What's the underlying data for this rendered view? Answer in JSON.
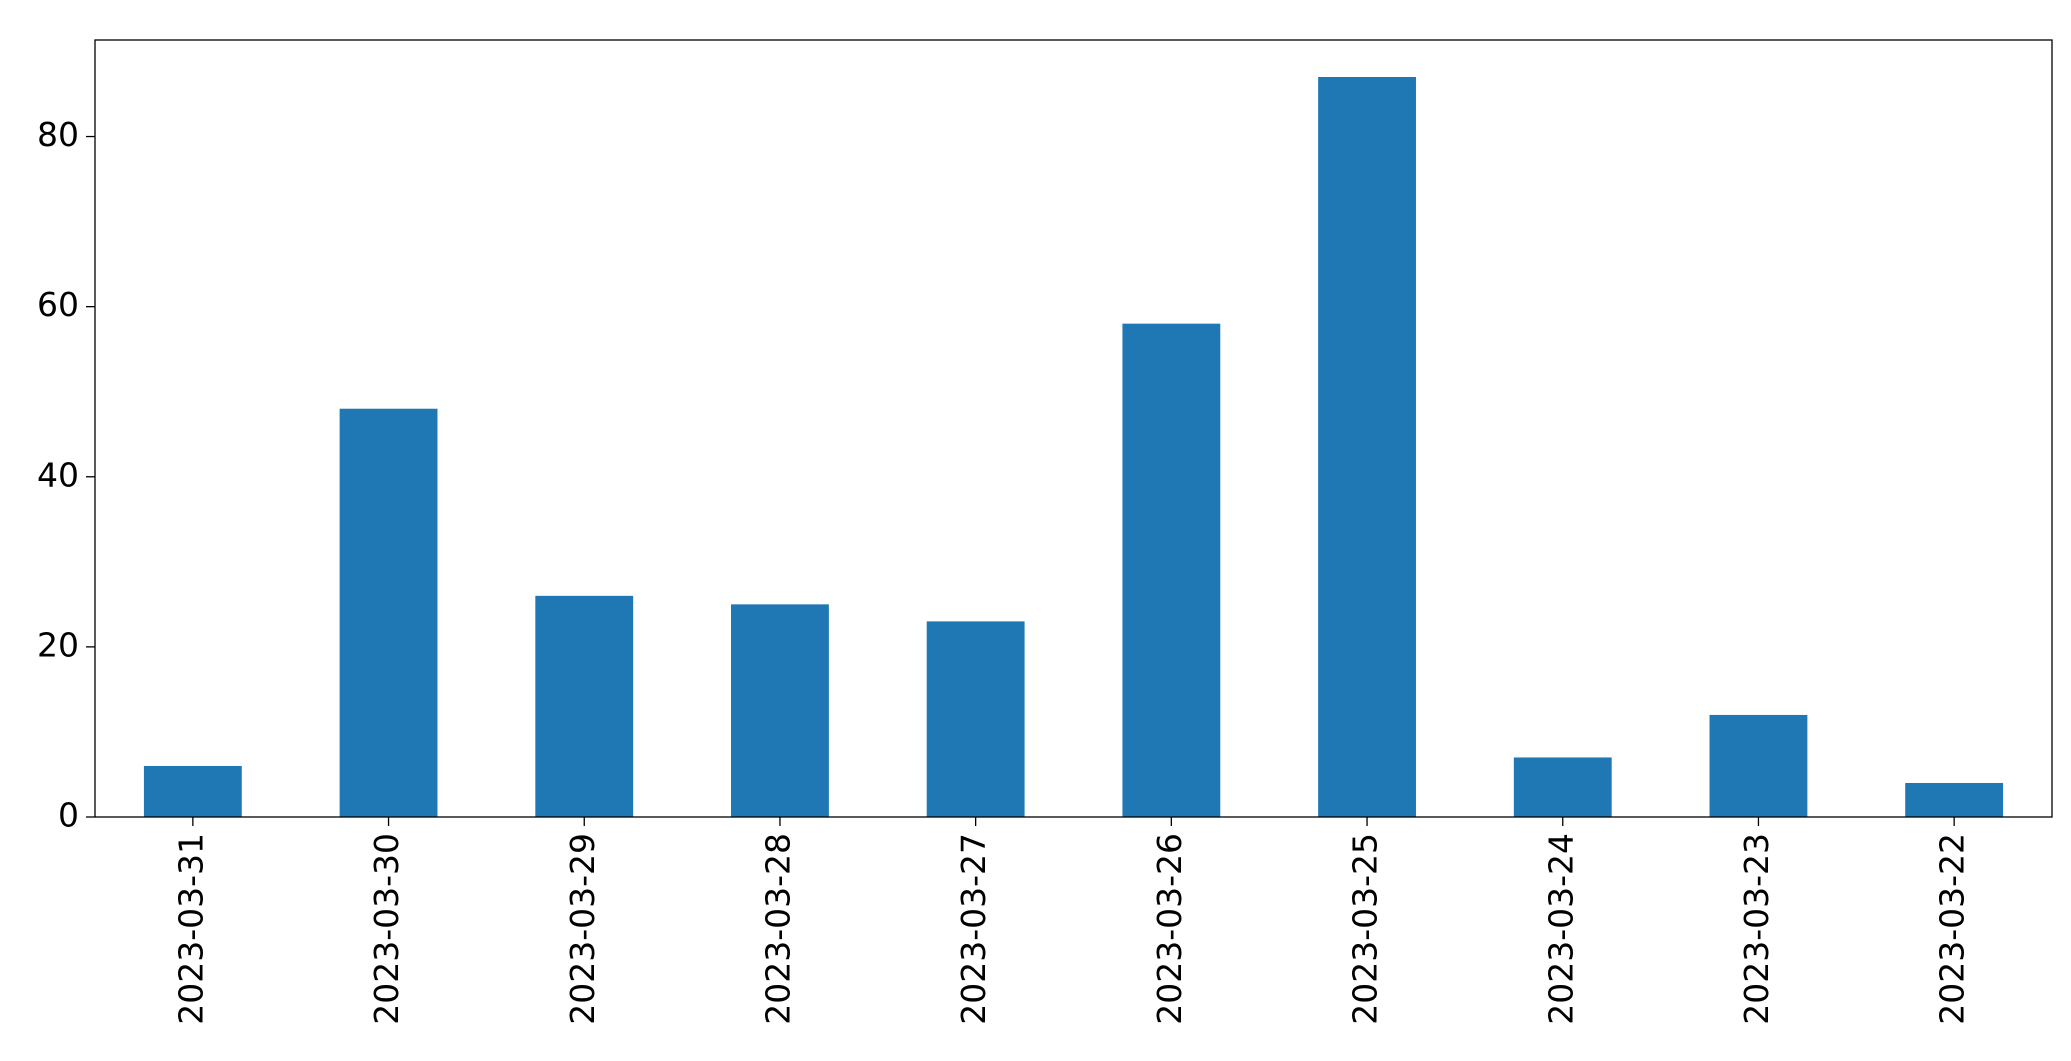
{
  "chart_data": {
    "type": "bar",
    "categories": [
      "2023-03-31",
      "2023-03-30",
      "2023-03-29",
      "2023-03-28",
      "2023-03-27",
      "2023-03-26",
      "2023-03-25",
      "2023-03-24",
      "2023-03-23",
      "2023-03-22"
    ],
    "values": [
      6,
      48,
      26,
      25,
      23,
      58,
      87,
      7,
      12,
      4
    ],
    "color": "#1f77b4",
    "ylim": [
      0,
      91.35
    ],
    "yticks": [
      0,
      20,
      40,
      60,
      80
    ],
    "grid": false
  }
}
